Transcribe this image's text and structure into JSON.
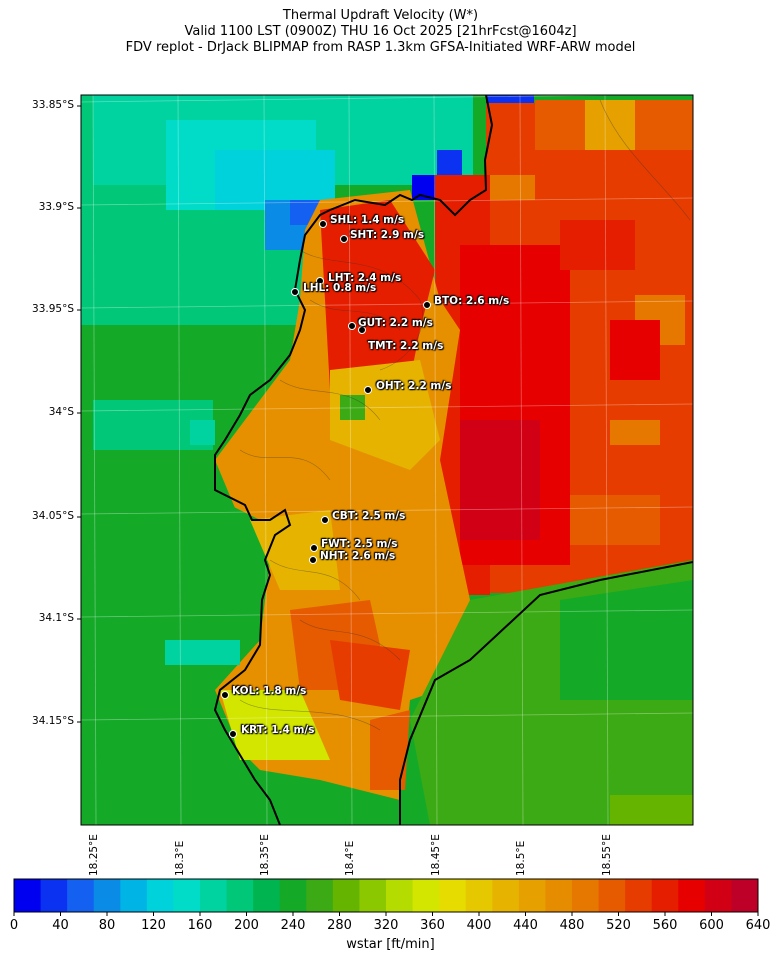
{
  "title": {
    "line1": "Thermal Updraft Velocity (W*)",
    "line2": "Valid 1100 LST (0900Z) THU 16 Oct 2025 [21hrFcst@1604z]",
    "line3": "FDV replot - DrJack BLIPMAP from RASP 1.3km GFSA-Initiated WRF-ARW model"
  },
  "map": {
    "lat_ticks": [
      "33.85°S",
      "33.9°S",
      "33.95°S",
      "34°S",
      "34.05°S",
      "34.1°S",
      "34.15°S"
    ],
    "lon_ticks": [
      "18.25°E",
      "18.3°E",
      "18.35°E",
      "18.4°E",
      "18.45°E",
      "18.5°E",
      "18.55°E"
    ],
    "stations": [
      {
        "id": "SHL",
        "label": "SHL: 1.4 m/s",
        "value": 1.4
      },
      {
        "id": "SHT",
        "label": "SHT: 2.9 m/s",
        "value": 2.9
      },
      {
        "id": "LHT",
        "label": "LHT: 2.4 m/s",
        "value": 2.4
      },
      {
        "id": "LHL",
        "label": "LHL: 0.8 m/s",
        "value": 0.8
      },
      {
        "id": "BTO",
        "label": "BTO: 2.6 m/s",
        "value": 2.6
      },
      {
        "id": "GUT",
        "label": "GUT: 2.2 m/s",
        "value": 2.2
      },
      {
        "id": "TMT",
        "label": "TMT: 2.2 m/s",
        "value": 2.2
      },
      {
        "id": "OHT",
        "label": "OHT: 2.2 m/s",
        "value": 2.2
      },
      {
        "id": "CBT",
        "label": "CBT: 2.5 m/s",
        "value": 2.5
      },
      {
        "id": "FWT",
        "label": "FWT: 2.5 m/s",
        "value": 2.5
      },
      {
        "id": "NHT",
        "label": "NHT: 2.6 m/s",
        "value": 2.6
      },
      {
        "id": "KOL",
        "label": "KOL: 1.8 m/s",
        "value": 1.8
      },
      {
        "id": "KRT",
        "label": "KRT: 1.4 m/s",
        "value": 1.4
      }
    ]
  },
  "colorbar": {
    "title": "wstar [ft/min]",
    "tick_labels": [
      "0",
      "40",
      "80",
      "120",
      "160",
      "200",
      "240",
      "280",
      "320",
      "360",
      "400",
      "440",
      "480",
      "520",
      "560",
      "600",
      "640"
    ],
    "colors": [
      "#0000f0",
      "#0a32f0",
      "#1460f0",
      "#0a8ce6",
      "#00b4e6",
      "#00d2dc",
      "#00dcc8",
      "#00d2a0",
      "#00c878",
      "#00b450",
      "#14aa28",
      "#3caa14",
      "#64b400",
      "#8cc800",
      "#b4dc00",
      "#d2e600",
      "#e6dc00",
      "#e6c800",
      "#e6b400",
      "#e6a000",
      "#e68c00",
      "#e67800",
      "#e65a00",
      "#e63c00",
      "#e61e00",
      "#e60000",
      "#d20014",
      "#be0028"
    ]
  }
}
